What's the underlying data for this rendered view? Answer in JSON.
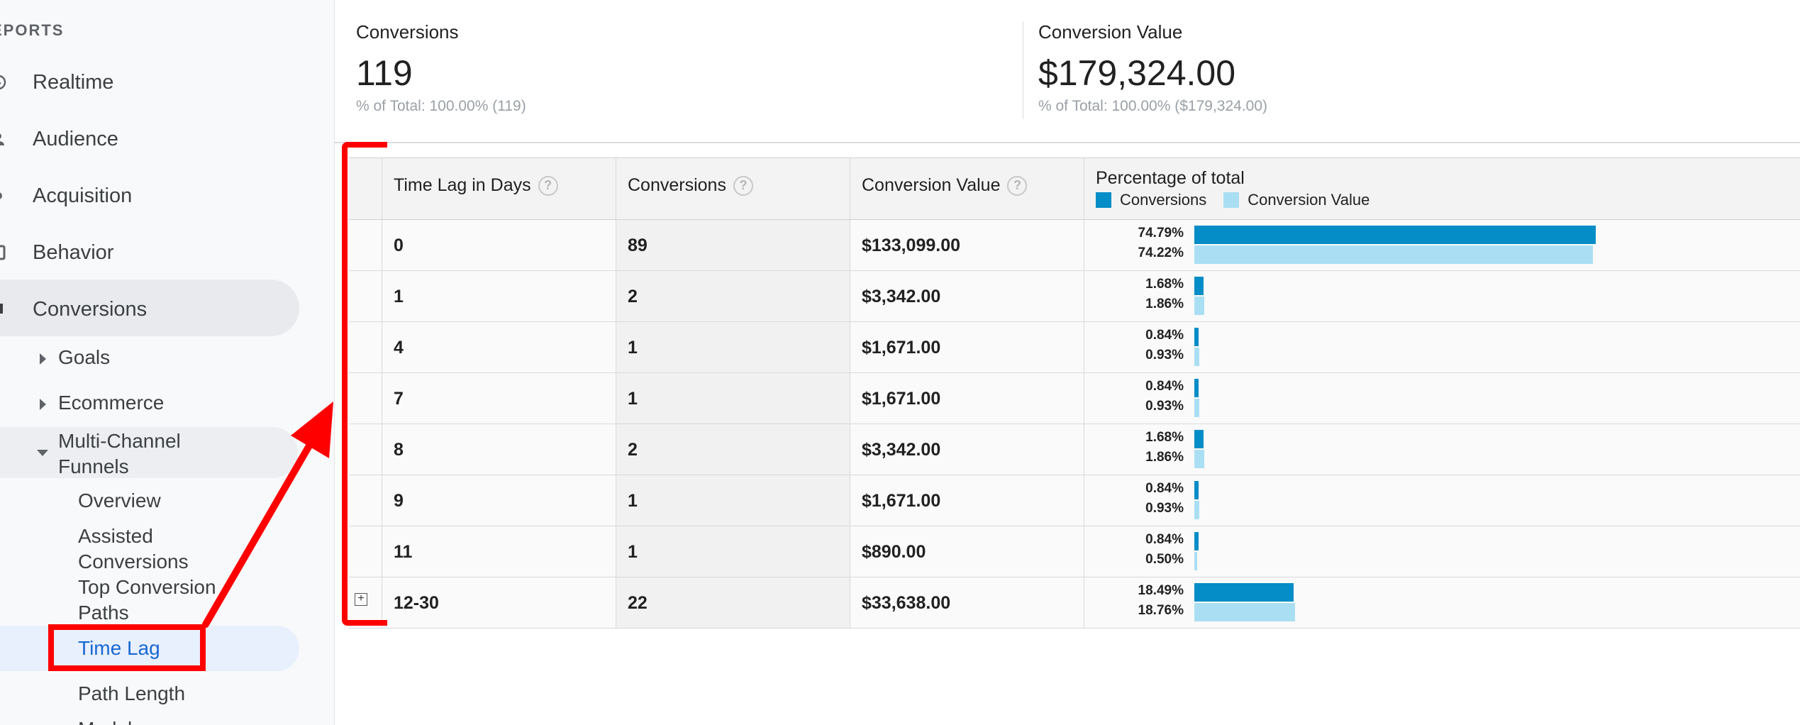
{
  "sidebar": {
    "section_header": "EPORTS",
    "items": [
      {
        "label": "Realtime",
        "icon": "clock-icon"
      },
      {
        "label": "Audience",
        "icon": "person-icon"
      },
      {
        "label": "Acquisition",
        "icon": "acquisition-icon"
      },
      {
        "label": "Behavior",
        "icon": "behavior-icon"
      },
      {
        "label": "Conversions",
        "icon": "flag-icon"
      }
    ],
    "sub_items": {
      "goals": "Goals",
      "ecommerce": "Ecommerce",
      "mcf_line1": "Multi-Channel",
      "mcf_line2": "Funnels"
    },
    "mcf_children": {
      "overview": "Overview",
      "assisted_1": "Assisted",
      "assisted_2": "Conversions",
      "top_1": "Top Conversion",
      "top_2": "Paths",
      "time_lag": "Time Lag",
      "path_length": "Path Length",
      "next_cut": "Model"
    }
  },
  "scorecards": [
    {
      "label": "Conversions",
      "value": "119",
      "sub": "% of Total: 100.00% (119)"
    },
    {
      "label": "Conversion Value",
      "value": "$179,324.00",
      "sub": "% of Total: 100.00% ($179,324.00)"
    }
  ],
  "table": {
    "headers": {
      "time_lag": "Time Lag in Days",
      "conversions": "Conversions",
      "conversion_value": "Conversion Value",
      "percentage": "Percentage of total",
      "help": "?"
    },
    "legend": {
      "conversions": "Conversions",
      "conversion_value": "Conversion Value"
    },
    "colors": {
      "conversions": "#058dc7",
      "conversion_value": "#aadff3"
    },
    "rows": [
      {
        "lag": "0",
        "conversions": "89",
        "value": "$133,099.00",
        "pct_conv": "74.79%",
        "pct_val": "74.22%",
        "conv_frac": 0.7479,
        "val_frac": 0.7422
      },
      {
        "lag": "1",
        "conversions": "2",
        "value": "$3,342.00",
        "pct_conv": "1.68%",
        "pct_val": "1.86%",
        "conv_frac": 0.0168,
        "val_frac": 0.0186
      },
      {
        "lag": "4",
        "conversions": "1",
        "value": "$1,671.00",
        "pct_conv": "0.84%",
        "pct_val": "0.93%",
        "conv_frac": 0.0084,
        "val_frac": 0.0093
      },
      {
        "lag": "7",
        "conversions": "1",
        "value": "$1,671.00",
        "pct_conv": "0.84%",
        "pct_val": "0.93%",
        "conv_frac": 0.0084,
        "val_frac": 0.0093
      },
      {
        "lag": "8",
        "conversions": "2",
        "value": "$3,342.00",
        "pct_conv": "1.68%",
        "pct_val": "1.86%",
        "conv_frac": 0.0168,
        "val_frac": 0.0186
      },
      {
        "lag": "9",
        "conversions": "1",
        "value": "$1,671.00",
        "pct_conv": "0.84%",
        "pct_val": "0.93%",
        "conv_frac": 0.0084,
        "val_frac": 0.0093
      },
      {
        "lag": "11",
        "conversions": "1",
        "value": "$890.00",
        "pct_conv": "0.84%",
        "pct_val": "0.50%",
        "conv_frac": 0.0084,
        "val_frac": 0.005
      },
      {
        "lag": "12-30",
        "conversions": "22",
        "value": "$33,638.00",
        "pct_conv": "18.49%",
        "pct_val": "18.76%",
        "conv_frac": 0.1849,
        "val_frac": 0.1876,
        "expandable": true,
        "expand_glyph": "+"
      }
    ]
  }
}
